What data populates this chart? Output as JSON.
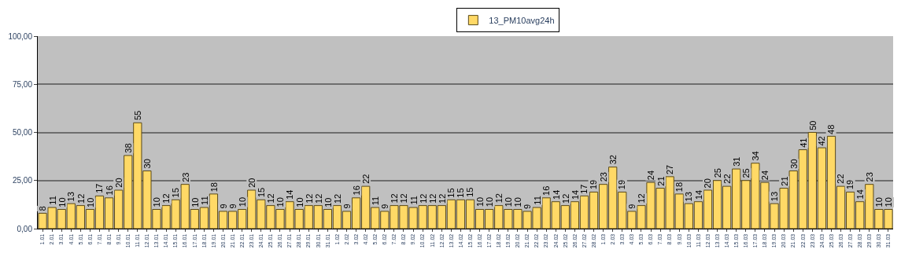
{
  "chart_data": {
    "type": "bar",
    "categories": [
      "1.01",
      "2.01",
      "3.01",
      "4.01",
      "5.01",
      "6.01",
      "7.01",
      "8.01",
      "9.01",
      "10.01",
      "11.01",
      "12.01",
      "13.01",
      "14.01",
      "15.01",
      "16.01",
      "17.01",
      "18.01",
      "19.01",
      "20.01",
      "21.01",
      "22.01",
      "23.01",
      "24.01",
      "25.01",
      "26.01",
      "27.01",
      "28.01",
      "29.01",
      "30.01",
      "31.01",
      "1.02",
      "2.02",
      "3.02",
      "4.02",
      "5.02",
      "6.02",
      "7.02",
      "8.02",
      "9.02",
      "10.02",
      "11.02",
      "12.02",
      "13.02",
      "14.02",
      "15.02",
      "16.02",
      "17.02",
      "18.02",
      "19.02",
      "20.02",
      "21.02",
      "22.02",
      "23.02",
      "24.02",
      "25.02",
      "26.02",
      "27.02",
      "28.02",
      "1.03",
      "2.03",
      "3.03",
      "4.03",
      "5.03",
      "6.03",
      "7.03",
      "8.03",
      "9.03",
      "10.03",
      "11.03",
      "12.03",
      "13.03",
      "14.03",
      "15.03",
      "16.03",
      "17.03",
      "18.03",
      "19.03",
      "20.03",
      "21.03",
      "22.03",
      "23.03",
      "24.03",
      "25.03",
      "26.03",
      "27.03",
      "28.03",
      "29.03",
      "30.03",
      "31.03"
    ],
    "series": [
      {
        "name": "13_PM10avg24h",
        "color": "#ffd966",
        "values": [
          8,
          11,
          10,
          13,
          12,
          10,
          17,
          16,
          20,
          38,
          55,
          30,
          10,
          12,
          15,
          23,
          10,
          11,
          18,
          9,
          9,
          10,
          20,
          15,
          12,
          10,
          14,
          10,
          12,
          12,
          10,
          12,
          9,
          16,
          22,
          11,
          9,
          12,
          12,
          11,
          12,
          12,
          12,
          15,
          15,
          15,
          10,
          10,
          12,
          10,
          10,
          9,
          11,
          16,
          14,
          12,
          14,
          17,
          19,
          23,
          32,
          19,
          9,
          12,
          24,
          21,
          27,
          18,
          13,
          14,
          20,
          25,
          22,
          31,
          25,
          34,
          24,
          13,
          21,
          30,
          41,
          50,
          42,
          48,
          22,
          19,
          14,
          23,
          10,
          10
        ]
      }
    ],
    "ylim": [
      0,
      100
    ],
    "yticks": [
      {
        "value": 0,
        "label": "0,00"
      },
      {
        "value": 25,
        "label": "25,00"
      },
      {
        "value": 50,
        "label": "50,00"
      },
      {
        "value": 75,
        "label": "75,00"
      },
      {
        "value": 100,
        "label": "100,00"
      }
    ],
    "grid": "y",
    "legend": "top",
    "data_labels": true
  }
}
